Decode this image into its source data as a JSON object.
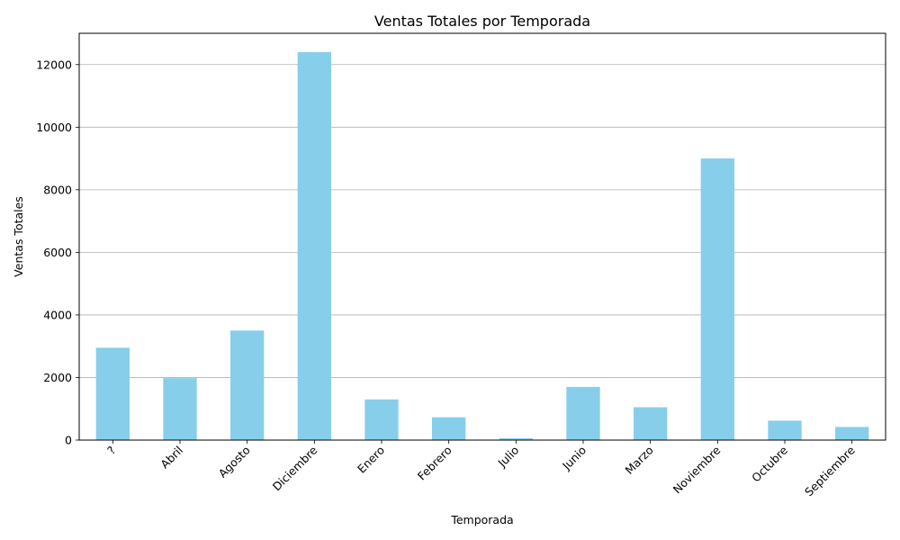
{
  "chart_data": {
    "type": "bar",
    "title": "Ventas Totales por Temporada",
    "xlabel": "Temporada",
    "ylabel": "Ventas Totales",
    "categories": [
      "?",
      "Abril",
      "Agosto",
      "Diciembre",
      "Enero",
      "Febrero",
      "Julio",
      "Junio",
      "Marzo",
      "Noviembre",
      "Octubre",
      "Septiembre"
    ],
    "values": [
      2950,
      1980,
      3500,
      12400,
      1300,
      730,
      60,
      1700,
      1050,
      9000,
      620,
      420
    ],
    "ylim": [
      0,
      13000
    ],
    "yticks": [
      0,
      2000,
      4000,
      6000,
      8000,
      10000,
      12000
    ],
    "ytick_labels": [
      "0",
      "2000",
      "4000",
      "6000",
      "8000",
      "10000",
      "12000"
    ],
    "grid": "y",
    "bar_color": "#87ceeb"
  }
}
